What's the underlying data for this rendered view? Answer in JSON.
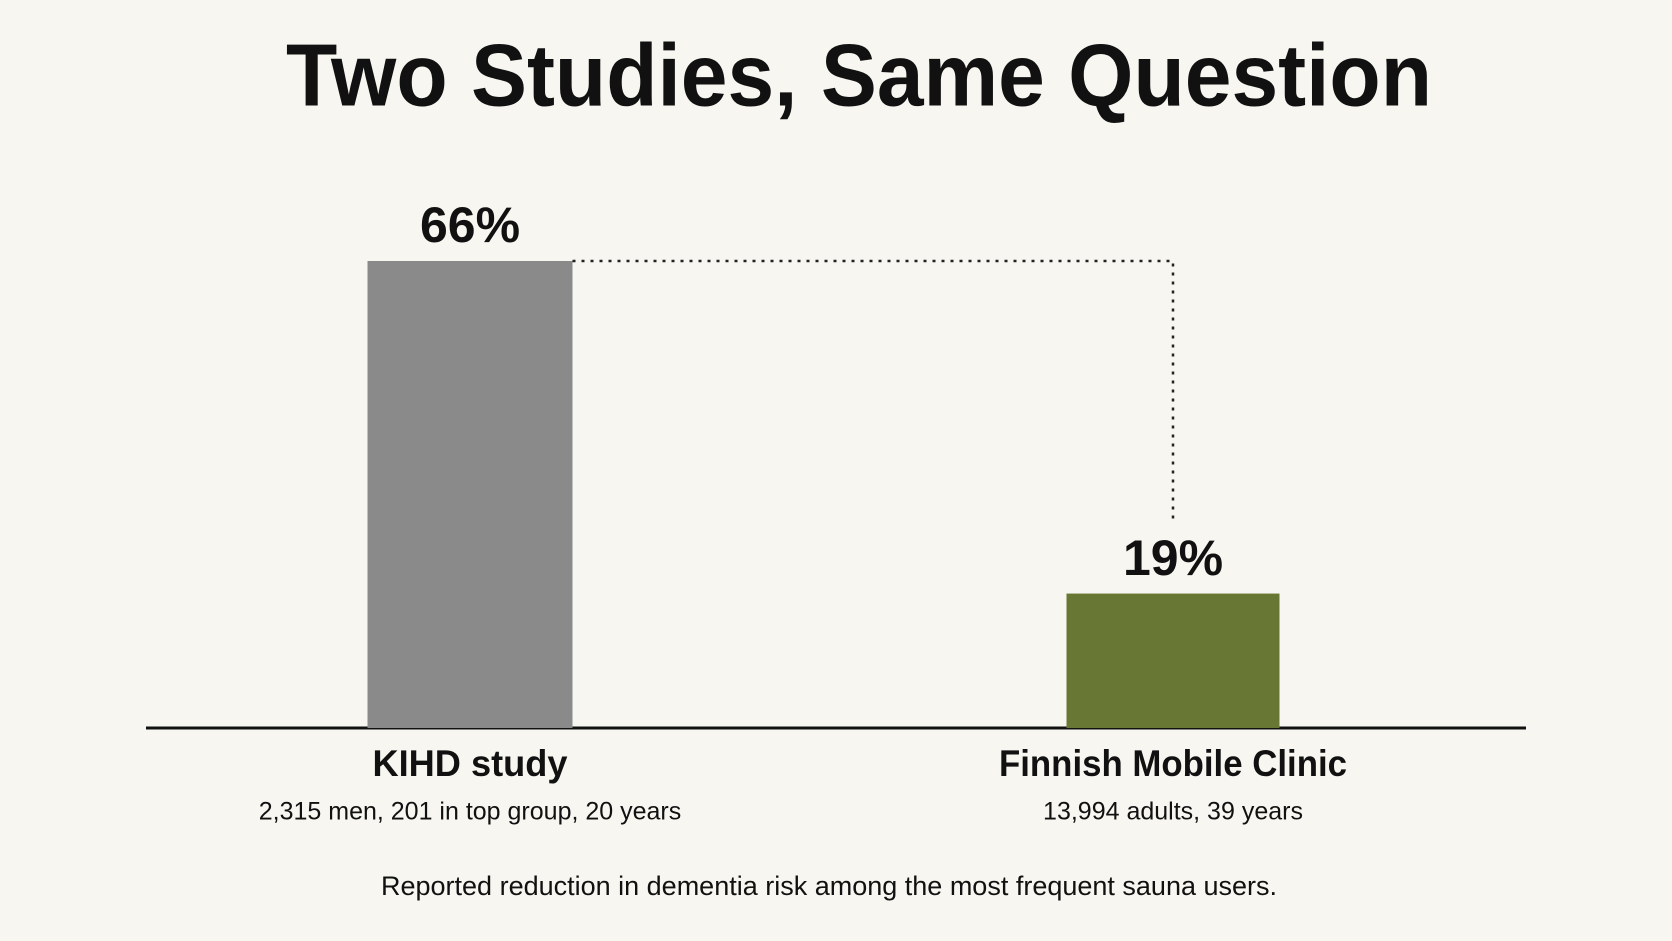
{
  "chart_data": {
    "type": "bar",
    "title": "Two Studies, Same Question",
    "categories": [
      "KIHD study",
      "Finnish Mobile Clinic"
    ],
    "category_subtitles": [
      "2,315 men, 201 in top group, 20 years",
      "13,994 adults, 39 years"
    ],
    "values": [
      66,
      19
    ],
    "value_labels": [
      "66%",
      "19%"
    ],
    "colors": [
      "#8a8a8a",
      "#687834"
    ],
    "caption": "Reported reduction in dementia risk among the most frequent sauna users."
  }
}
